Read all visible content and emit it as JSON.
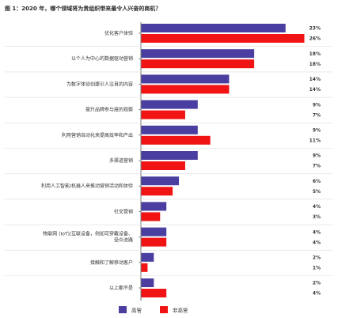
{
  "title": "图 1：2020 年，哪个领域将为贵组织带来最令人兴奋的商机？",
  "colors": {
    "executive": "#4a3fa0",
    "non_executive": "#f01414",
    "axis": "#555555",
    "divider": "#dddddd"
  },
  "chart_data": {
    "type": "bar",
    "orientation": "horizontal",
    "title": "图 1：2020 年，哪个领域将为贵组织带来最令人兴奋的商机？",
    "categories": [
      [
        "优化客户体验"
      ],
      [
        "以个人为中心的数据驱动营销"
      ],
      [
        "为数字体验创建引人注目的内容"
      ],
      [
        "提升品牌参与度的观察"
      ],
      [
        "利用营销自动化来提高效率和产出"
      ],
      [
        "多渠道营销"
      ],
      [
        "利用人工智能/机器人来推动营销活动和体验"
      ],
      [
        "社交营销"
      ],
      [
        "物联网 (IoT)/互联设备，例如可穿戴设备、",
        "受众流路"
      ],
      [
        "接触和了解移动客户"
      ],
      [
        "以上都不是"
      ]
    ],
    "series": [
      {
        "name": "高管",
        "color": "#4a3fa0",
        "values": [
          23,
          18,
          14,
          9,
          9,
          9,
          6,
          4,
          4,
          2,
          2
        ]
      },
      {
        "name": "非高管",
        "color": "#f01414",
        "values": [
          26,
          18,
          14,
          7,
          11,
          7,
          5,
          3,
          4,
          1,
          4
        ]
      }
    ],
    "value_suffix": "%",
    "xlim": [
      0,
      26
    ],
    "grid": false,
    "legend": {
      "position": "bottom-center",
      "entries": [
        "高管",
        "非高管"
      ]
    }
  }
}
